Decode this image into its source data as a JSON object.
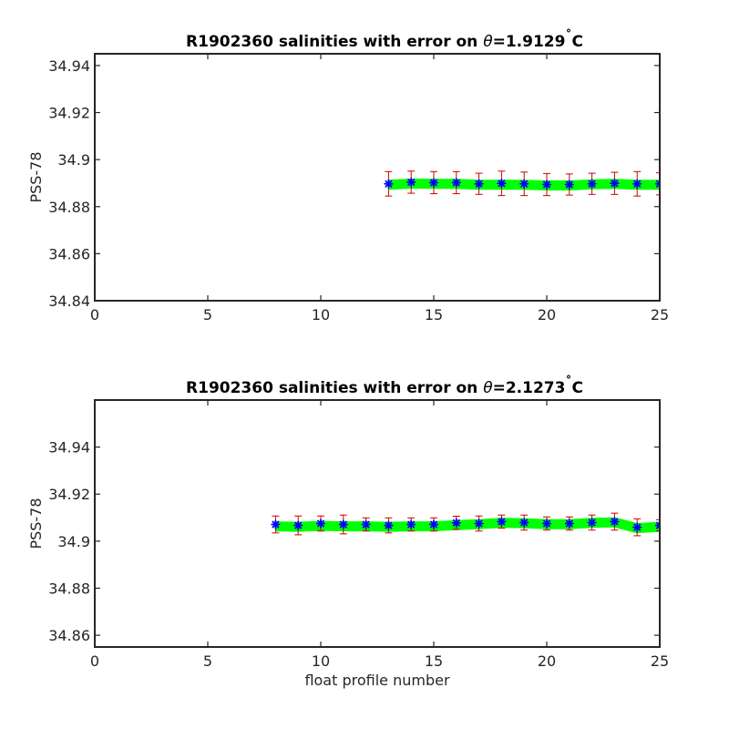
{
  "chart_data": [
    {
      "type": "line",
      "title": "R1902360 salinities with error on θ=1.9129˚C",
      "title_parts": {
        "prefix": "R1902360 salinities with error on ",
        "theta": "θ",
        "value": "=1.9129",
        "degree": "˚",
        "unit": "C"
      },
      "xlabel": "",
      "ylabel": "PSS-78",
      "xlim": [
        0,
        25
      ],
      "ylim": [
        34.84,
        34.945
      ],
      "xticks": [
        0,
        5,
        10,
        15,
        20,
        25
      ],
      "xtick_labels": [
        "0",
        "5",
        "10",
        "15",
        "20",
        "25"
      ],
      "yticks": [
        34.84,
        34.86,
        34.88,
        34.9,
        34.92,
        34.94
      ],
      "ytick_labels": [
        "34.84",
        "34.86",
        "34.88",
        "34.9",
        "34.92",
        "34.94"
      ],
      "grid": false,
      "series": [
        {
          "style": "thick green line",
          "color": "#00ff00",
          "x": [
            13,
            14,
            15,
            16,
            17,
            18,
            19,
            20,
            21,
            22,
            23,
            24,
            25
          ],
          "values": [
            34.8893,
            34.8898,
            34.8897,
            34.8897,
            34.8893,
            34.8893,
            34.8893,
            34.889,
            34.889,
            34.8895,
            34.8897,
            34.8893,
            34.8893
          ]
        },
        {
          "style": "blue asterisk markers with red error bars",
          "color": "#0000ff",
          "error_color": "#cc0000",
          "x": [
            13,
            14,
            15,
            16,
            17,
            18,
            19,
            20,
            21,
            22,
            23,
            24,
            25
          ],
          "values": [
            34.8897,
            34.8904,
            34.8902,
            34.8902,
            34.8897,
            34.8899,
            34.8897,
            34.8894,
            34.8894,
            34.8897,
            34.8899,
            34.8897,
            34.8897
          ],
          "error": [
            0.0052,
            0.0047,
            0.0047,
            0.0047,
            0.0045,
            0.0052,
            0.005,
            0.0047,
            0.0045,
            0.0045,
            0.0047,
            0.0052,
            0.0047
          ]
        }
      ]
    },
    {
      "type": "line",
      "title": "R1902360 salinities with error on θ=2.1273˚C",
      "title_parts": {
        "prefix": "R1902360 salinities with error on ",
        "theta": "θ",
        "value": "=2.1273",
        "degree": "˚",
        "unit": "C"
      },
      "xlabel": "float profile number",
      "ylabel": "PSS-78",
      "xlim": [
        0,
        25
      ],
      "ylim": [
        34.855,
        34.96
      ],
      "xticks": [
        0,
        5,
        10,
        15,
        20,
        25
      ],
      "xtick_labels": [
        "0",
        "5",
        "10",
        "15",
        "20",
        "25"
      ],
      "yticks": [
        34.86,
        34.88,
        34.9,
        34.92,
        34.94
      ],
      "ytick_labels": [
        "34.86",
        "34.88",
        "34.9",
        "34.92",
        "34.94"
      ],
      "grid": false,
      "series": [
        {
          "style": "thick green line",
          "color": "#00ff00",
          "x": [
            8,
            9,
            10,
            11,
            12,
            13,
            14,
            15,
            16,
            17,
            18,
            19,
            20,
            21,
            22,
            23,
            24,
            25
          ],
          "values": [
            34.9063,
            34.9061,
            34.9065,
            34.9063,
            34.9063,
            34.9061,
            34.9063,
            34.9063,
            34.9068,
            34.9072,
            34.9078,
            34.9076,
            34.9072,
            34.9072,
            34.9078,
            34.908,
            34.9055,
            34.9061
          ]
        },
        {
          "style": "blue asterisk markers with red error bars",
          "color": "#0000ff",
          "error_color": "#cc0000",
          "x": [
            8,
            9,
            10,
            11,
            12,
            13,
            14,
            15,
            16,
            17,
            18,
            19,
            20,
            21,
            22,
            23,
            24,
            25
          ],
          "values": [
            34.9071,
            34.9067,
            34.9075,
            34.9071,
            34.9071,
            34.9067,
            34.9071,
            34.9071,
            34.9078,
            34.9075,
            34.9083,
            34.9079,
            34.9075,
            34.9075,
            34.9079,
            34.9083,
            34.9059,
            34.9067
          ],
          "error": [
            0.0036,
            0.004,
            0.0032,
            0.004,
            0.0028,
            0.0032,
            0.0028,
            0.0028,
            0.0028,
            0.0032,
            0.0028,
            0.0032,
            0.0028,
            0.0028,
            0.0032,
            0.0036,
            0.0036,
            0.0024
          ]
        }
      ]
    }
  ]
}
